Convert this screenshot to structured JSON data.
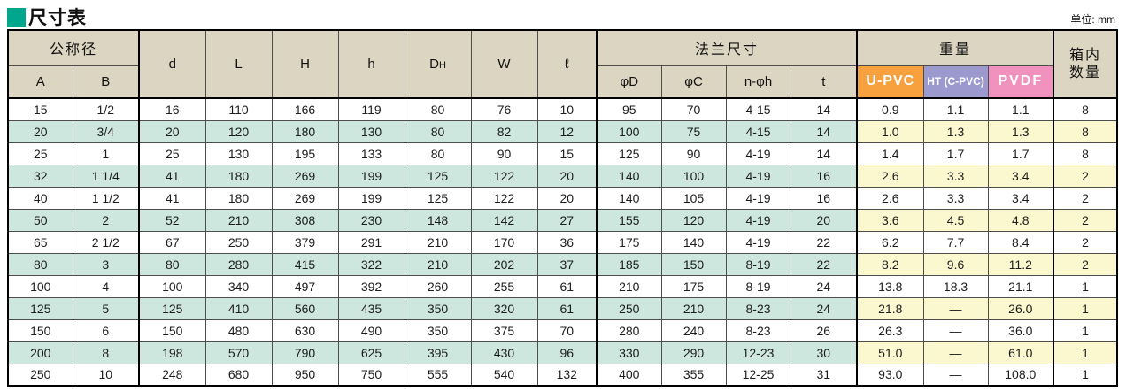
{
  "title": "尺寸表",
  "unit_label": "单位: mm",
  "colors": {
    "title_square": "#00a78c",
    "header_bg": "#dbd5c1",
    "stripe_teal": "#cde7de",
    "stripe_yellow": "#fbf8d0",
    "upvc_bg": "#f6a13e",
    "ht_bg": "#9c99ce",
    "pvdf_bg": "#f192be"
  },
  "header": {
    "nominal": "公称径",
    "col_a": "A",
    "col_b": "B",
    "col_d": "d",
    "col_l": "L",
    "col_h_cap": "H",
    "col_h_low": "h",
    "col_dh_main": "D",
    "col_dh_sub": "H",
    "col_w": "W",
    "col_ell": "ℓ",
    "flange": "法兰尺寸",
    "col_phi_d": "φD",
    "col_phi_c": "φC",
    "col_n_phi_h": "n-φh",
    "col_t": "t",
    "weight": "重量",
    "mat_upvc": "U-PVC",
    "mat_ht": "HT (C-PVC)",
    "mat_pvdf": "PVDF",
    "box_line1": "箱内",
    "box_line2": "数量"
  },
  "table": {
    "rows": [
      [
        "15",
        "1/2",
        "16",
        "110",
        "166",
        "119",
        "80",
        "76",
        "10",
        "95",
        "70",
        "4-15",
        "14",
        "0.9",
        "1.1",
        "1.1",
        "8"
      ],
      [
        "20",
        "3/4",
        "20",
        "120",
        "180",
        "130",
        "80",
        "82",
        "12",
        "100",
        "75",
        "4-15",
        "14",
        "1.0",
        "1.3",
        "1.3",
        "8"
      ],
      [
        "25",
        "1",
        "25",
        "130",
        "195",
        "133",
        "80",
        "90",
        "15",
        "125",
        "90",
        "4-19",
        "14",
        "1.4",
        "1.7",
        "1.7",
        "8"
      ],
      [
        "32",
        "1 1/4",
        "41",
        "180",
        "269",
        "199",
        "125",
        "122",
        "20",
        "140",
        "100",
        "4-19",
        "16",
        "2.6",
        "3.3",
        "3.4",
        "2"
      ],
      [
        "40",
        "1 1/2",
        "41",
        "180",
        "269",
        "199",
        "125",
        "122",
        "20",
        "140",
        "105",
        "4-19",
        "16",
        "2.6",
        "3.3",
        "3.4",
        "2"
      ],
      [
        "50",
        "2",
        "52",
        "210",
        "308",
        "230",
        "148",
        "142",
        "27",
        "155",
        "120",
        "4-19",
        "20",
        "3.6",
        "4.5",
        "4.8",
        "2"
      ],
      [
        "65",
        "2 1/2",
        "67",
        "250",
        "379",
        "291",
        "210",
        "170",
        "36",
        "175",
        "140",
        "4-19",
        "22",
        "6.2",
        "7.7",
        "8.4",
        "2"
      ],
      [
        "80",
        "3",
        "80",
        "280",
        "415",
        "322",
        "210",
        "202",
        "37",
        "185",
        "150",
        "8-19",
        "22",
        "8.2",
        "9.6",
        "11.2",
        "2"
      ],
      [
        "100",
        "4",
        "100",
        "340",
        "497",
        "392",
        "260",
        "255",
        "61",
        "210",
        "175",
        "8-19",
        "24",
        "13.8",
        "18.3",
        "21.1",
        "1"
      ],
      [
        "125",
        "5",
        "125",
        "410",
        "560",
        "435",
        "350",
        "320",
        "61",
        "250",
        "210",
        "8-23",
        "24",
        "21.8",
        "—",
        "26.0",
        "1"
      ],
      [
        "150",
        "6",
        "150",
        "480",
        "630",
        "490",
        "350",
        "375",
        "70",
        "280",
        "240",
        "8-23",
        "26",
        "26.3",
        "—",
        "36.0",
        "1"
      ],
      [
        "200",
        "8",
        "198",
        "570",
        "790",
        "625",
        "395",
        "430",
        "96",
        "330",
        "290",
        "12-23",
        "30",
        "51.0",
        "—",
        "61.0",
        "1"
      ],
      [
        "250",
        "10",
        "248",
        "680",
        "950",
        "750",
        "555",
        "540",
        "132",
        "400",
        "355",
        "12-25",
        "31",
        "93.0",
        "—",
        "108.0",
        "1"
      ]
    ]
  }
}
